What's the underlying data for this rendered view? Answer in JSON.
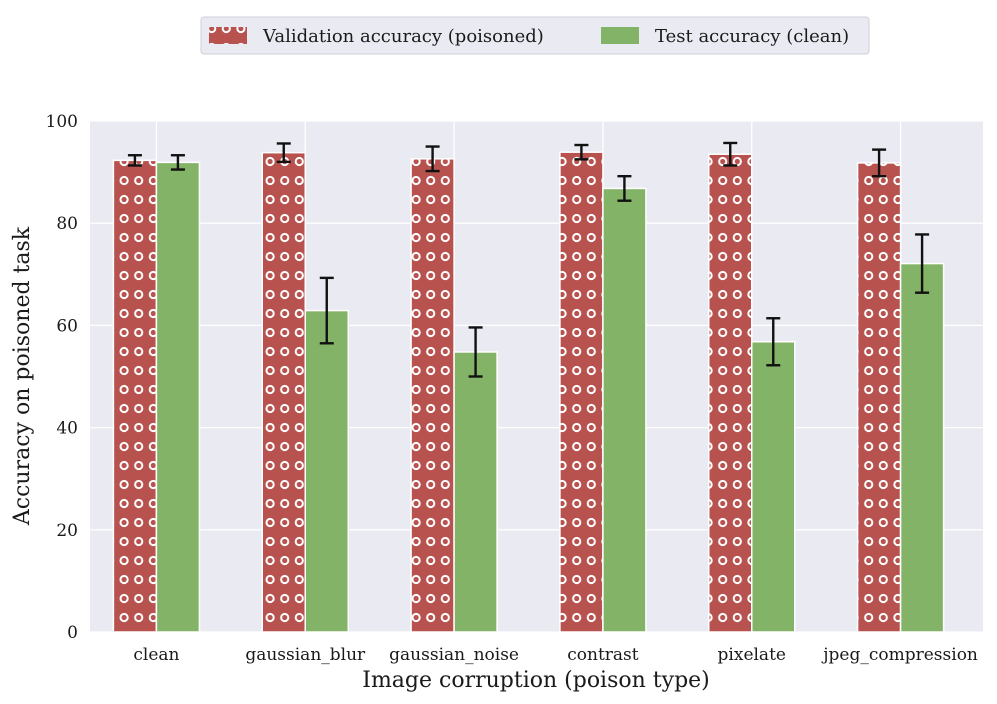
{
  "chart_data": {
    "type": "bar",
    "title": "",
    "xlabel": "Image corruption (poison type)",
    "ylabel": "Accuracy on poisoned task",
    "ylim": [
      0,
      100
    ],
    "yticks": [
      0,
      20,
      40,
      60,
      80,
      100
    ],
    "grid": true,
    "legend_position": "top-center",
    "categories": [
      "clean",
      "gaussian_blur",
      "gaussian_noise",
      "contrast",
      "pixelate",
      "jpeg_compression"
    ],
    "series": [
      {
        "name": "Validation accuracy (poisoned)",
        "values": [
          92.3,
          93.8,
          92.6,
          93.9,
          93.5,
          91.8
        ],
        "errors": [
          1.0,
          1.8,
          2.4,
          1.4,
          2.2,
          2.6
        ],
        "color": "#b8524f",
        "pattern": "circles"
      },
      {
        "name": "Test accuracy (clean)",
        "values": [
          91.9,
          62.9,
          54.8,
          86.8,
          56.8,
          72.1
        ],
        "errors": [
          1.4,
          6.4,
          4.8,
          2.4,
          4.6,
          5.7
        ],
        "color": "#82b366",
        "pattern": "solid"
      }
    ]
  },
  "colors": {
    "background": "#ffffff",
    "plot_area": "#eaeaf2",
    "grid": "#ffffff",
    "error_bar": "#111111"
  }
}
